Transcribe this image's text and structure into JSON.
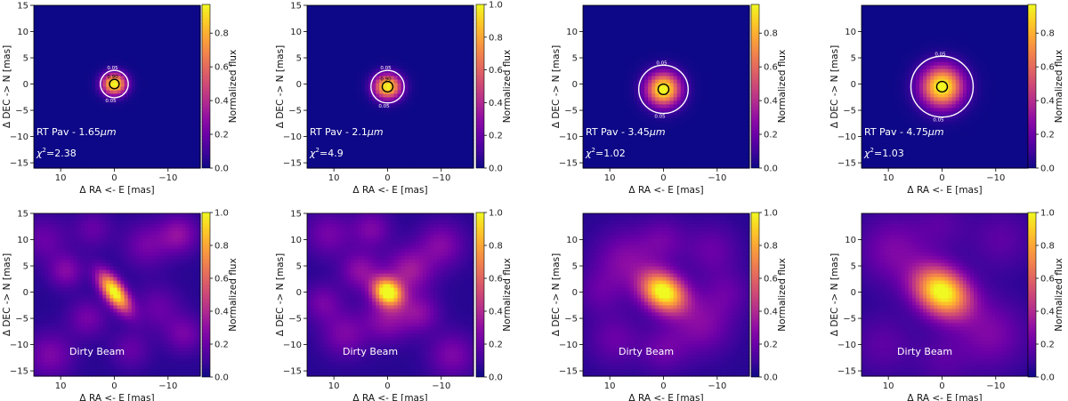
{
  "figure": {
    "colorbar_label": "Normalized flux",
    "xlabel": "Δ RA <- E [mas]",
    "ylabel": "Δ DEC -> N [mas]"
  },
  "chart_data": [
    {
      "type": "heatmap",
      "row": "top",
      "col": 0,
      "title": "",
      "label": "RT Pav - 1.65",
      "label_unit": "μm",
      "chi2": "2.38",
      "xlim": [
        15,
        -16
      ],
      "ylim": [
        -16,
        15
      ],
      "xticks": [
        10,
        0,
        -10
      ],
      "yticks": [
        15,
        10,
        5,
        0,
        -5,
        -10,
        -15
      ],
      "cbar_range": [
        0,
        0.97
      ],
      "cbar_ticks": [
        "0.0",
        "0.2",
        "0.4",
        "0.6",
        "0.8"
      ],
      "source": {
        "x": 0,
        "y": 0,
        "sigma": 1.4,
        "elong": 1.1
      },
      "contours": [
        {
          "level": "0.05",
          "radius": 2.6,
          "color": "#ffffff"
        },
        {
          "level": "0.90",
          "radius": 0.9,
          "color": "#000000"
        }
      ]
    },
    {
      "type": "heatmap",
      "row": "top",
      "col": 1,
      "title": "",
      "label": "RT Pav - 2.1",
      "label_unit": "μm",
      "chi2": "4.9",
      "xlim": [
        15,
        -16
      ],
      "ylim": [
        -16,
        15
      ],
      "xticks": [
        10,
        0,
        -10
      ],
      "yticks": [
        15,
        10,
        5,
        0,
        -5,
        -10,
        -15
      ],
      "cbar_range": [
        0,
        1.0
      ],
      "cbar_ticks": [
        "0.0",
        "0.2",
        "0.4",
        "0.6",
        "0.8",
        "1.0"
      ],
      "source": {
        "x": 0,
        "y": -0.5,
        "sigma": 1.6,
        "elong": 1.1
      },
      "contours": [
        {
          "level": "0.05",
          "radius": 3.1,
          "color": "#ffffff"
        },
        {
          "level": "0.90",
          "radius": 1.0,
          "color": "#000000"
        }
      ]
    },
    {
      "type": "heatmap",
      "row": "top",
      "col": 2,
      "title": "",
      "label": "RT Pav - 3.45",
      "label_unit": "μm",
      "chi2": "1.02",
      "xlim": [
        15,
        -16
      ],
      "ylim": [
        -16,
        15
      ],
      "xticks": [
        10,
        0,
        -10
      ],
      "yticks": [
        10,
        5,
        0,
        -5,
        -10,
        -15
      ],
      "cbar_range": [
        0,
        0.97
      ],
      "cbar_ticks": [
        "0.0",
        "0.2",
        "0.4",
        "0.6",
        "0.8"
      ],
      "source": {
        "x": 0,
        "y": -1,
        "sigma": 2.2,
        "elong": 1.0
      },
      "contours": [
        {
          "level": "0.05",
          "radius": 4.6,
          "color": "#ffffff"
        },
        {
          "level": "",
          "radius": 1.0,
          "color": "#000000"
        }
      ]
    },
    {
      "type": "heatmap",
      "row": "top",
      "col": 3,
      "title": "",
      "label": "RT Pav - 4.75",
      "label_unit": "μm",
      "chi2": "1.03",
      "xlim": [
        15,
        -16
      ],
      "ylim": [
        -16,
        15
      ],
      "xticks": [
        10,
        0,
        -10
      ],
      "yticks": [
        10,
        5,
        0,
        -5,
        -10,
        -15
      ],
      "cbar_range": [
        0,
        0.97
      ],
      "cbar_ticks": [
        "0.0",
        "0.2",
        "0.4",
        "0.6",
        "0.8"
      ],
      "source": {
        "x": 0,
        "y": -0.5,
        "sigma": 2.7,
        "elong": 1.0
      },
      "contours": [
        {
          "level": "0.05",
          "radius": 5.8,
          "color": "#ffffff"
        },
        {
          "level": "",
          "radius": 1.0,
          "color": "#000000"
        }
      ]
    },
    {
      "type": "heatmap",
      "row": "bottom",
      "col": 0,
      "title": "",
      "label": "Dirty Beam",
      "xlim": [
        15,
        -16
      ],
      "ylim": [
        -16,
        15
      ],
      "xticks": [
        10,
        0,
        -10
      ],
      "yticks": [
        15,
        10,
        5,
        0,
        -5,
        -10,
        -15
      ],
      "cbar_range": [
        0,
        1.0
      ],
      "cbar_ticks": [
        "0.0",
        "0.2",
        "0.4",
        "0.6",
        "0.8",
        "1.0"
      ],
      "source": {
        "x": 0,
        "y": 0,
        "sigma": 1.3,
        "elong": 2.3,
        "angle": 55
      },
      "sidelobes": [
        [
          9,
          4,
          2.2,
          0.22
        ],
        [
          -6,
          9,
          3,
          0.18
        ],
        [
          -12,
          11,
          2.5,
          0.25
        ],
        [
          12,
          -12,
          3,
          0.2
        ],
        [
          5,
          -5,
          2.5,
          0.18
        ],
        [
          -8,
          -3,
          3,
          0.15
        ],
        [
          13,
          10,
          3,
          0.15
        ],
        [
          -3,
          -11,
          2.5,
          0.14
        ],
        [
          4,
          12,
          2.5,
          0.14
        ],
        [
          -13,
          -8,
          2.5,
          0.18
        ]
      ]
    },
    {
      "type": "heatmap",
      "row": "bottom",
      "col": 1,
      "title": "",
      "label": "Dirty Beam",
      "xlim": [
        15,
        -16
      ],
      "ylim": [
        -16,
        15
      ],
      "xticks": [
        10,
        0,
        -10
      ],
      "yticks": [
        15,
        10,
        5,
        0,
        -5,
        -10,
        -15
      ],
      "cbar_range": [
        0,
        1.0
      ],
      "cbar_ticks": [
        "0.0",
        "0.2",
        "0.4",
        "0.6",
        "0.8",
        "1.0"
      ],
      "source": {
        "x": 0,
        "y": 0,
        "sigma": 1.7,
        "elong": 1.2,
        "angle": 40
      },
      "sidelobes": [
        [
          -4,
          4,
          3,
          0.3
        ],
        [
          5,
          4,
          2.5,
          0.25
        ],
        [
          0,
          -5,
          3,
          0.25
        ],
        [
          -6,
          -4,
          2.5,
          0.22
        ],
        [
          8,
          -8,
          3,
          0.2
        ],
        [
          -10,
          9,
          3,
          0.22
        ],
        [
          11,
          11,
          3,
          0.18
        ],
        [
          -12,
          -12,
          3,
          0.2
        ],
        [
          3,
          12,
          2.5,
          0.2
        ],
        [
          12,
          -2,
          2.5,
          0.18
        ]
      ]
    },
    {
      "type": "heatmap",
      "row": "bottom",
      "col": 2,
      "title": "",
      "label": "Dirty Beam",
      "xlim": [
        15,
        -16
      ],
      "ylim": [
        -16,
        15
      ],
      "xticks": [
        10,
        0,
        -10
      ],
      "yticks": [
        10,
        5,
        0,
        -5,
        -10,
        -15
      ],
      "cbar_range": [
        0,
        1.0
      ],
      "cbar_ticks": [
        "0.0",
        "0.2",
        "0.4",
        "0.6",
        "0.8",
        "1.0"
      ],
      "source": {
        "x": 0,
        "y": 0,
        "sigma": 2.4,
        "elong": 1.3,
        "angle": 35
      },
      "sidelobes": [
        [
          7,
          6,
          4,
          0.22
        ],
        [
          -7,
          -6,
          4,
          0.22
        ],
        [
          -9,
          8,
          3.5,
          0.15
        ],
        [
          9,
          -9,
          3.5,
          0.15
        ],
        [
          0,
          10,
          3,
          0.15
        ],
        [
          0,
          -11,
          3,
          0.15
        ],
        [
          12,
          0,
          3,
          0.12
        ],
        [
          -12,
          0,
          3,
          0.12
        ]
      ]
    },
    {
      "type": "heatmap",
      "row": "bottom",
      "col": 3,
      "title": "",
      "label": "Dirty Beam",
      "xlim": [
        15,
        -16
      ],
      "ylim": [
        -16,
        15
      ],
      "xticks": [
        10,
        0,
        -10
      ],
      "yticks": [
        10,
        5,
        0,
        -5,
        -10,
        -15
      ],
      "cbar_range": [
        0,
        1.0
      ],
      "cbar_ticks": [
        "0.0",
        "0.2",
        "0.4",
        "0.6",
        "0.8",
        "1.0"
      ],
      "source": {
        "x": 0,
        "y": 0,
        "sigma": 3.0,
        "elong": 1.3,
        "angle": 35
      },
      "sidelobes": [
        [
          9,
          8,
          4.5,
          0.2
        ],
        [
          -9,
          -8,
          4.5,
          0.2
        ],
        [
          -11,
          10,
          4,
          0.12
        ],
        [
          11,
          -10,
          4,
          0.12
        ],
        [
          0,
          13,
          3.5,
          0.1
        ],
        [
          0,
          -13,
          3.5,
          0.1
        ]
      ]
    }
  ]
}
